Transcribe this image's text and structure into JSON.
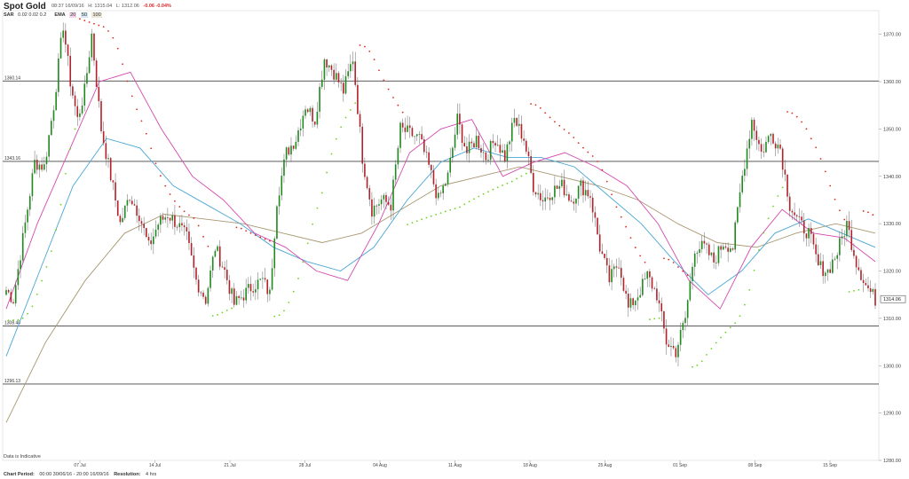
{
  "header": {
    "title": "Spot Gold",
    "timestamp": "08:37 16/09/16",
    "high": "H: 1315.04",
    "low": "L: 1312.06",
    "change": "-0.06",
    "change_pct": "-0.04%"
  },
  "indicators": {
    "sar_label": "SAR",
    "sar_params": "0.02  0.02  0.2",
    "ema_label": "EMA",
    "ema_periods": [
      "20",
      "50",
      "100"
    ]
  },
  "footer": {
    "period_label": "Chart Period:",
    "period_value": "00:00 30/06/16 - 20:00 16/09/16",
    "resolution_label": "Resolution:",
    "resolution_value": "4 hrs"
  },
  "disclaimer": "Data is Indicative",
  "colors": {
    "up": "#1f8a1f",
    "down": "#b2222a",
    "wick": "#666666",
    "sar_above": "#e02a1d",
    "sar_below": "#6ad31e",
    "ema20": "#d44ab0",
    "ema50": "#4aa6d6",
    "ema100": "#a89870",
    "hline": "#444444"
  },
  "chart_data": {
    "type": "candlestick",
    "ylim": [
      1280,
      1375
    ],
    "yticks": [
      "1370.00",
      "1360.00",
      "1350.00",
      "1340.00",
      "1330.00",
      "1320.00",
      "1310.00",
      "1300.00",
      "1290.00",
      "1280.00"
    ],
    "xlabels": [
      "07 Jul",
      "14 Jul",
      "21 Jul",
      "28 Jul",
      "04 Aug",
      "11 Aug",
      "18 Aug",
      "25 Aug",
      "01 Sep",
      "08 Sep",
      "15 Sep"
    ],
    "last_price": "1314.06",
    "hlines": [
      {
        "label": "1360.14",
        "value": 1360.14
      },
      {
        "label": "1343.16",
        "value": 1343.16
      },
      {
        "label": "1308.40",
        "value": 1308.4
      },
      {
        "label": "1296.13",
        "value": 1296.13
      }
    ],
    "anchors": [
      [
        0,
        1316
      ],
      [
        3,
        1314
      ],
      [
        8,
        1330
      ],
      [
        12,
        1343
      ],
      [
        16,
        1342
      ],
      [
        20,
        1355
      ],
      [
        24,
        1372
      ],
      [
        27,
        1360
      ],
      [
        30,
        1352
      ],
      [
        33,
        1358
      ],
      [
        36,
        1370
      ],
      [
        40,
        1350
      ],
      [
        44,
        1340
      ],
      [
        48,
        1330
      ],
      [
        52,
        1336
      ],
      [
        56,
        1332
      ],
      [
        60,
        1325
      ],
      [
        64,
        1330
      ],
      [
        68,
        1332
      ],
      [
        72,
        1330
      ],
      [
        76,
        1327
      ],
      [
        80,
        1318
      ],
      [
        84,
        1314
      ],
      [
        88,
        1325
      ],
      [
        92,
        1320
      ],
      [
        96,
        1313
      ],
      [
        100,
        1315
      ],
      [
        104,
        1317
      ],
      [
        108,
        1318
      ],
      [
        111,
        1315
      ],
      [
        114,
        1335
      ],
      [
        118,
        1345
      ],
      [
        122,
        1348
      ],
      [
        126,
        1355
      ],
      [
        130,
        1352
      ],
      [
        134,
        1365
      ],
      [
        138,
        1362
      ],
      [
        142,
        1358
      ],
      [
        146,
        1365
      ],
      [
        150,
        1344
      ],
      [
        154,
        1333
      ],
      [
        158,
        1335
      ],
      [
        162,
        1334
      ],
      [
        166,
        1350
      ],
      [
        170,
        1349
      ],
      [
        174,
        1348
      ],
      [
        178,
        1342
      ],
      [
        182,
        1335
      ],
      [
        186,
        1340
      ],
      [
        190,
        1352
      ],
      [
        194,
        1345
      ],
      [
        198,
        1348
      ],
      [
        202,
        1344
      ],
      [
        206,
        1348
      ],
      [
        210,
        1344
      ],
      [
        214,
        1352
      ],
      [
        218,
        1348
      ],
      [
        222,
        1338
      ],
      [
        226,
        1335
      ],
      [
        230,
        1337
      ],
      [
        234,
        1338
      ],
      [
        238,
        1335
      ],
      [
        242,
        1338
      ],
      [
        246,
        1336
      ],
      [
        250,
        1325
      ],
      [
        254,
        1318
      ],
      [
        258,
        1322
      ],
      [
        262,
        1312
      ],
      [
        266,
        1315
      ],
      [
        270,
        1319
      ],
      [
        274,
        1315
      ],
      [
        278,
        1305
      ],
      [
        282,
        1303
      ],
      [
        286,
        1310
      ],
      [
        290,
        1325
      ],
      [
        294,
        1325
      ],
      [
        298,
        1322
      ],
      [
        302,
        1326
      ],
      [
        306,
        1325
      ],
      [
        310,
        1340
      ],
      [
        314,
        1352
      ],
      [
        318,
        1345
      ],
      [
        322,
        1349
      ],
      [
        326,
        1346
      ],
      [
        330,
        1334
      ],
      [
        334,
        1330
      ],
      [
        338,
        1328
      ],
      [
        342,
        1321
      ],
      [
        346,
        1320
      ],
      [
        350,
        1324
      ],
      [
        354,
        1330
      ],
      [
        358,
        1322
      ],
      [
        362,
        1317
      ],
      [
        366,
        1314
      ]
    ],
    "candle_count": 367,
    "ema20_series": [
      1312,
      1330,
      1345,
      1360,
      1362,
      1350,
      1340,
      1335,
      1328,
      1325,
      1320,
      1318,
      1330,
      1345,
      1350,
      1352,
      1340,
      1343,
      1345,
      1342,
      1338,
      1330,
      1318,
      1312,
      1325,
      1333,
      1328,
      1327,
      1322
    ],
    "ema50_series": [
      1302,
      1320,
      1338,
      1348,
      1346,
      1338,
      1334,
      1330,
      1325,
      1322,
      1320,
      1325,
      1335,
      1343,
      1346,
      1344,
      1344,
      1342,
      1336,
      1330,
      1322,
      1315,
      1320,
      1328,
      1331,
      1328,
      1325
    ],
    "ema100_series": [
      1288,
      1305,
      1318,
      1328,
      1332,
      1331,
      1330,
      1328,
      1326,
      1328,
      1333,
      1338,
      1340,
      1342,
      1340,
      1338,
      1335,
      1330,
      1326,
      1325,
      1328,
      1330,
      1328
    ]
  }
}
